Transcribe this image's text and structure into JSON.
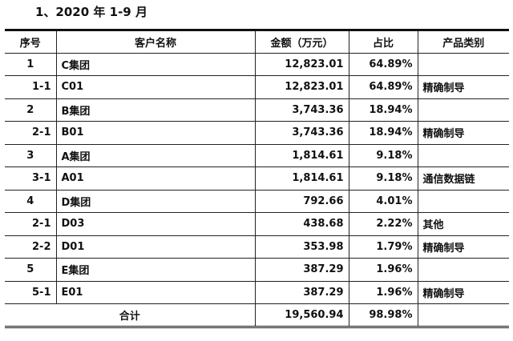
{
  "title": "1、2020 年 1-9 月",
  "headers": [
    "序号",
    "客户名称",
    "金额（万元）",
    "占比",
    "产品类别"
  ],
  "rows": [
    {
      "no": "1",
      "name": "C集团",
      "amount": "12,823.01",
      "ratio": "64.89%",
      "category": "",
      "sub": false
    },
    {
      "no": "1-1",
      "name": "C01",
      "amount": "12,823.01",
      "ratio": "64.89%",
      "category": "精确制导",
      "sub": true
    },
    {
      "no": "2",
      "name": "B集团",
      "amount": "3,743.36",
      "ratio": "18.94%",
      "category": "",
      "sub": false
    },
    {
      "no": "2-1",
      "name": "B01",
      "amount": "3,743.36",
      "ratio": "18.94%",
      "category": "精确制导",
      "sub": true
    },
    {
      "no": "3",
      "name": "A集团",
      "amount": "1,814.61",
      "ratio": "9.18%",
      "category": "",
      "sub": false
    },
    {
      "no": "3-1",
      "name": "A01",
      "amount": "1,814.61",
      "ratio": "9.18%",
      "category": "通信数据链",
      "sub": true
    },
    {
      "no": "4",
      "name": "D集团",
      "amount": "792.66",
      "ratio": "4.01%",
      "category": "",
      "sub": false
    },
    {
      "no": "2-1",
      "name": "D03",
      "amount": "438.68",
      "ratio": "2.22%",
      "category": "其他",
      "sub": true
    },
    {
      "no": "2-2",
      "name": "D01",
      "amount": "353.98",
      "ratio": "1.79%",
      "category": "精确制导",
      "sub": true
    },
    {
      "no": "5",
      "name": "E集团",
      "amount": "387.29",
      "ratio": "1.96%",
      "category": "",
      "sub": false
    },
    {
      "no": "5-1",
      "name": "E01",
      "amount": "387.29",
      "ratio": "1.96%",
      "category": "精确制导",
      "sub": true
    }
  ],
  "total": {
    "label": "合计",
    "amount": "19,560.94",
    "ratio": "98.98%",
    "category": ""
  }
}
